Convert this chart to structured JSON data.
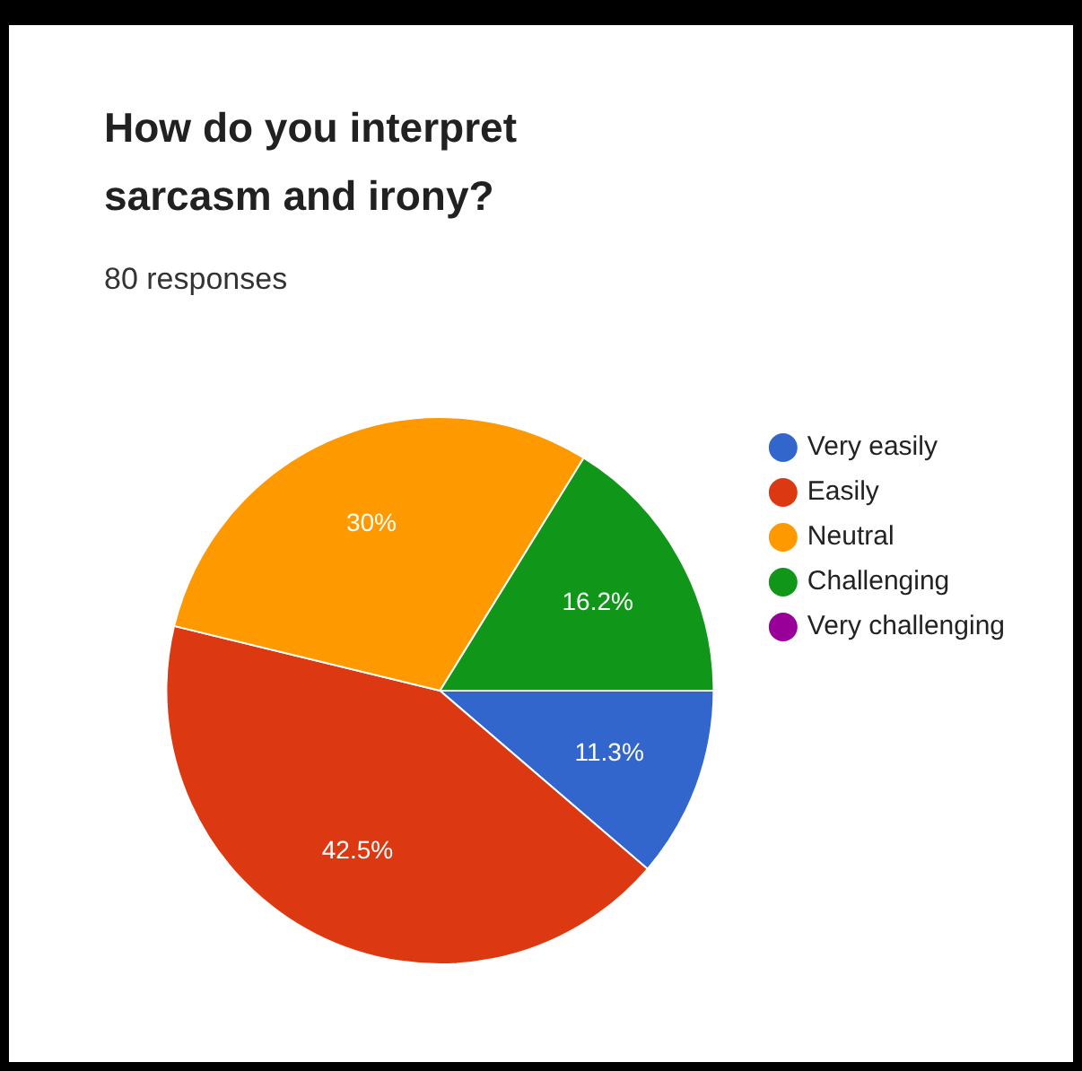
{
  "chart_data": {
    "type": "pie",
    "title": "How do you interpret sarcasm and irony?",
    "subtitle": "80 responses",
    "categories": [
      "Very easily",
      "Easily",
      "Neutral",
      "Challenging",
      "Very challenging"
    ],
    "values": [
      11.3,
      42.5,
      30,
      16.2,
      0
    ],
    "colors": [
      "#3366cc",
      "#dc3912",
      "#ff9900",
      "#109618",
      "#990099"
    ],
    "value_labels": [
      "11.3%",
      "42.5%",
      "30%",
      "16.2%",
      null
    ],
    "legend": "right",
    "marker": "circle"
  }
}
